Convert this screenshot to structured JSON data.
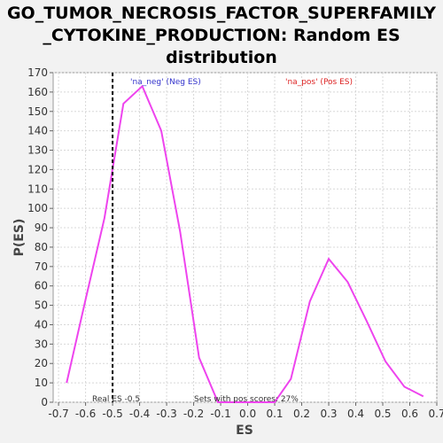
{
  "title_lines": [
    "GO_TUMOR_NECROSIS_FACTOR_SUPERFAMILY",
    "_CYTOKINE_PRODUCTION: Random ES",
    "distribution"
  ],
  "colors": {
    "line": "#ee44ee",
    "neg_label": "#3333cc",
    "pos_label": "#dd2222",
    "plot_bg": "#ffffff",
    "grid": "#d8d8d8"
  },
  "chart_data": {
    "type": "line",
    "title": "GO_TUMOR_NECROSIS_FACTOR_SUPERFAMILY_CYTOKINE_PRODUCTION: Random ES distribution",
    "xlabel": "ES",
    "ylabel": "P(ES)",
    "xlim": [
      -0.72,
      0.7
    ],
    "ylim": [
      0,
      170
    ],
    "x_ticks": [
      "-0.7",
      "-0.6",
      "-0.5",
      "-0.4",
      "-0.3",
      "-0.2",
      "-0.1",
      "0.0",
      "0.1",
      "0.2",
      "0.3",
      "0.4",
      "0.5",
      "0.6",
      "0.7"
    ],
    "y_ticks": [
      "0",
      "10",
      "20",
      "30",
      "40",
      "50",
      "60",
      "70",
      "80",
      "90",
      "100",
      "110",
      "120",
      "130",
      "140",
      "150",
      "160",
      "170"
    ],
    "grid": true,
    "series": [
      {
        "x": [
          -0.67,
          -0.6,
          -0.53,
          -0.46,
          -0.39,
          -0.32,
          -0.25,
          -0.18,
          -0.11,
          -0.04,
          0.03,
          0.1,
          0.16,
          0.23,
          0.3,
          0.37,
          0.44,
          0.51,
          0.58,
          0.65
        ],
        "y": [
          10,
          53,
          95,
          154,
          163,
          140,
          88,
          23,
          0,
          0,
          0,
          0,
          12,
          52,
          74,
          62,
          42,
          21,
          8,
          3
        ]
      }
    ],
    "real_es": -0.5,
    "annotations": {
      "neg_label": "'na_neg' (Neg ES)",
      "pos_label": "'na_pos' (Pos ES)",
      "real_es_text": "Real ES -0.5",
      "pos_scores_text": "Sets with pos scores: 27%"
    }
  }
}
